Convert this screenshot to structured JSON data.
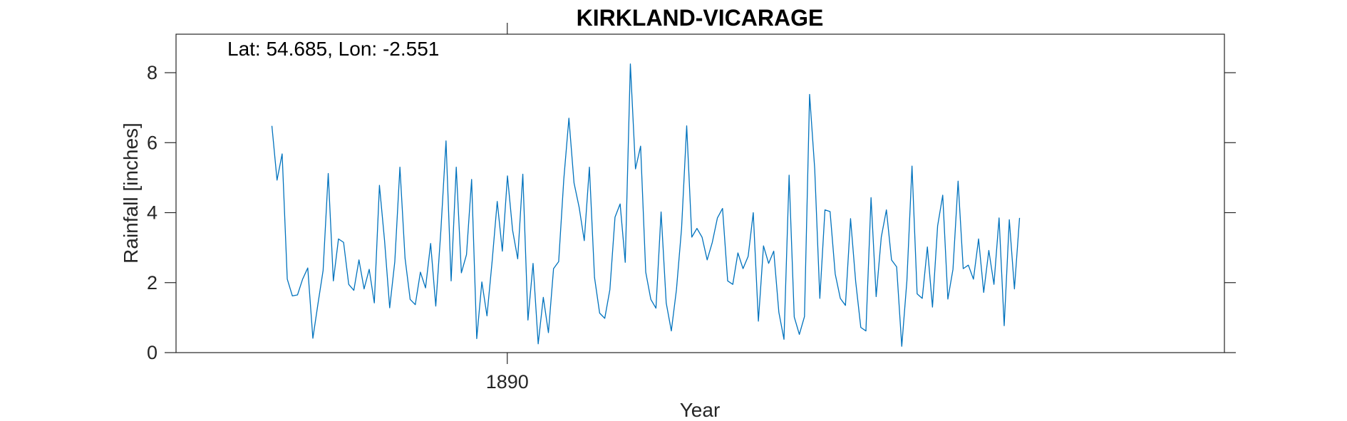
{
  "chart_data": {
    "type": "line",
    "title": "KIRKLAND-VICARAGE",
    "xlabel": "Year",
    "ylabel": "Rainfall [inches]",
    "annotation": "Lat: 54.685, Lon: -2.551",
    "xlim": [
      1884.61,
      1901.67
    ],
    "ylim": [
      0,
      9.1
    ],
    "x_ticks": [
      1890
    ],
    "y_ticks": [
      0,
      2,
      4,
      6,
      8
    ],
    "grid": false,
    "legend": "none",
    "series": [
      {
        "color": "#0072BD",
        "x_start": 1886.17,
        "x_step": 0.08333,
        "values": [
          6.48,
          4.93,
          5.68,
          2.1,
          1.62,
          1.65,
          2.1,
          2.42,
          0.41,
          1.4,
          2.35,
          5.12,
          2.05,
          3.25,
          3.15,
          1.95,
          1.78,
          2.65,
          1.82,
          2.38,
          1.42,
          4.78,
          3.2,
          1.28,
          2.6,
          5.3,
          2.7,
          1.52,
          1.37,
          2.3,
          1.85,
          3.12,
          1.33,
          3.5,
          6.05,
          2.05,
          5.3,
          2.28,
          2.8,
          4.95,
          0.4,
          2.02,
          1.05,
          2.6,
          4.32,
          2.9,
          5.05,
          3.5,
          2.68,
          5.1,
          0.93,
          2.55,
          0.25,
          1.58,
          0.57,
          2.4,
          2.6,
          4.95,
          6.7,
          4.85,
          4.15,
          3.2,
          5.3,
          2.15,
          1.13,
          0.98,
          1.8,
          3.87,
          4.25,
          2.58,
          8.25,
          5.25,
          5.9,
          2.3,
          1.52,
          1.27,
          4.02,
          1.42,
          0.62,
          1.8,
          3.55,
          6.48,
          3.3,
          3.55,
          3.3,
          2.65,
          3.15,
          3.85,
          4.12,
          2.05,
          1.95,
          2.85,
          2.4,
          2.75,
          4.0,
          0.9,
          3.05,
          2.55,
          2.9,
          1.15,
          0.38,
          5.07,
          1.02,
          0.52,
          1.03,
          7.38,
          5.25,
          1.55,
          4.08,
          4.03,
          2.25,
          1.55,
          1.35,
          3.83,
          2.03,
          0.72,
          0.62,
          4.43,
          1.6,
          3.3,
          4.08,
          2.65,
          2.45,
          0.18,
          2.05,
          5.33,
          1.68,
          1.55,
          3.02,
          1.3,
          3.62,
          4.5,
          1.53,
          2.38,
          4.9,
          2.4,
          2.5,
          2.1,
          3.25,
          1.72,
          2.92,
          1.95,
          3.85,
          0.77,
          3.8,
          1.82,
          3.85
        ]
      }
    ]
  }
}
